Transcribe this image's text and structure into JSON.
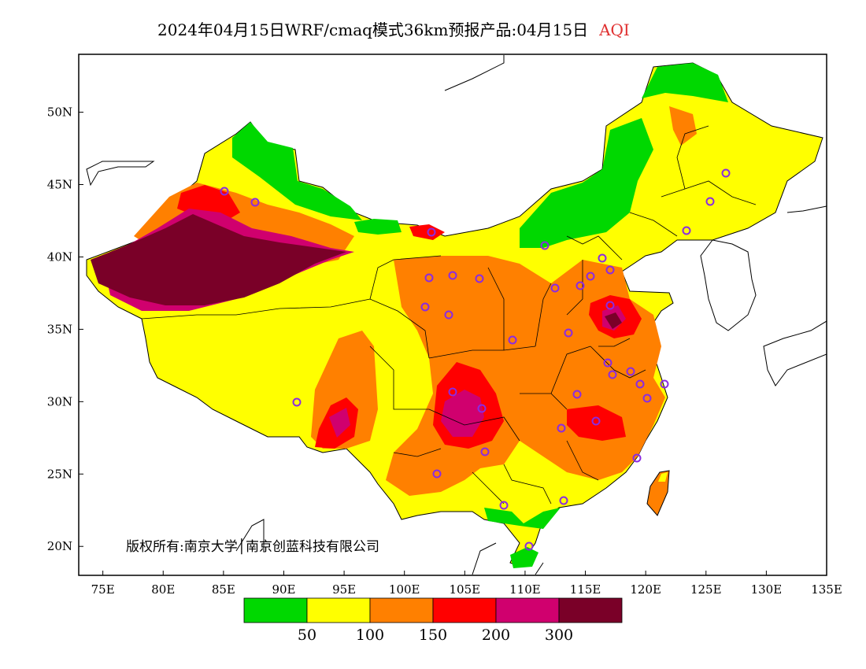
{
  "title": {
    "main": "2024年04月15日WRF/cmaq模式36km预报产品:04月15日",
    "variable": "AQI",
    "variable_color": "#e03030"
  },
  "copyright": "版权所有:南京大学│南京创蓝科技有限公司",
  "axes": {
    "x_ticks": [
      "75E",
      "80E",
      "85E",
      "90E",
      "95E",
      "100E",
      "105E",
      "110E",
      "115E",
      "120E",
      "125E",
      "130E",
      "135E"
    ],
    "y_ticks": [
      "50N",
      "45N",
      "40N",
      "35N",
      "30N",
      "25N",
      "20N"
    ],
    "x_range_lon": [
      73,
      135
    ],
    "y_range_lat": [
      18,
      54
    ]
  },
  "legend": {
    "colors": [
      "#00d800",
      "#ffff00",
      "#ff8000",
      "#ff0000",
      "#d0006e",
      "#7a0028"
    ],
    "labels": [
      "50",
      "100",
      "150",
      "200",
      "300"
    ]
  },
  "colors": {
    "good": "#00d800",
    "moderate": "#ffff00",
    "unhealthy_sensitive": "#ff8000",
    "unhealthy": "#ff0000",
    "very_unhealthy": "#d0006e",
    "hazardous": "#7a0028",
    "station_marker": "#8a2be2"
  }
}
